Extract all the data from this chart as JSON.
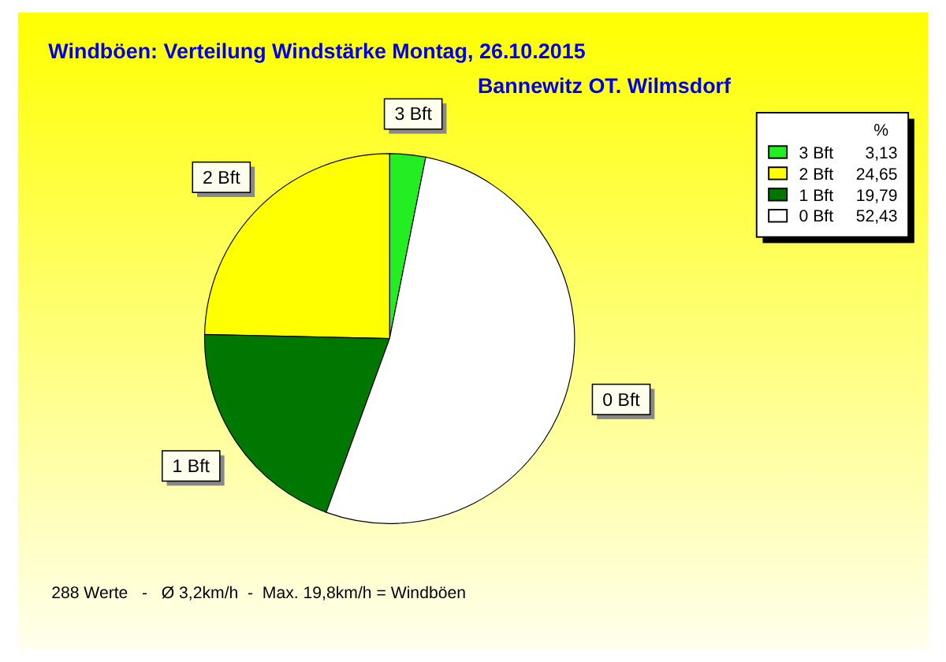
{
  "chart_data": {
    "type": "pie",
    "title": "Windböen: Verteilung Windstärke  Montag, 26.10.2015",
    "subtitle": "Bannewitz OT. Wilmsdorf",
    "categories": [
      "3 Bft",
      "2 Bft",
      "1 Bft",
      "0 Bft"
    ],
    "values": [
      3.13,
      24.65,
      19.79,
      52.43
    ],
    "colors": [
      "#22ee22",
      "#ffff00",
      "#007700",
      "#ffffff"
    ],
    "value_labels": [
      "3,13",
      "24,65",
      "19,79",
      "52,43"
    ],
    "legend": "top right",
    "legend_title": "%",
    "annotations": [
      "288 Werte   -   Ø 3,2km/h  -  Max. 19,8km/h = Windböen"
    ]
  }
}
